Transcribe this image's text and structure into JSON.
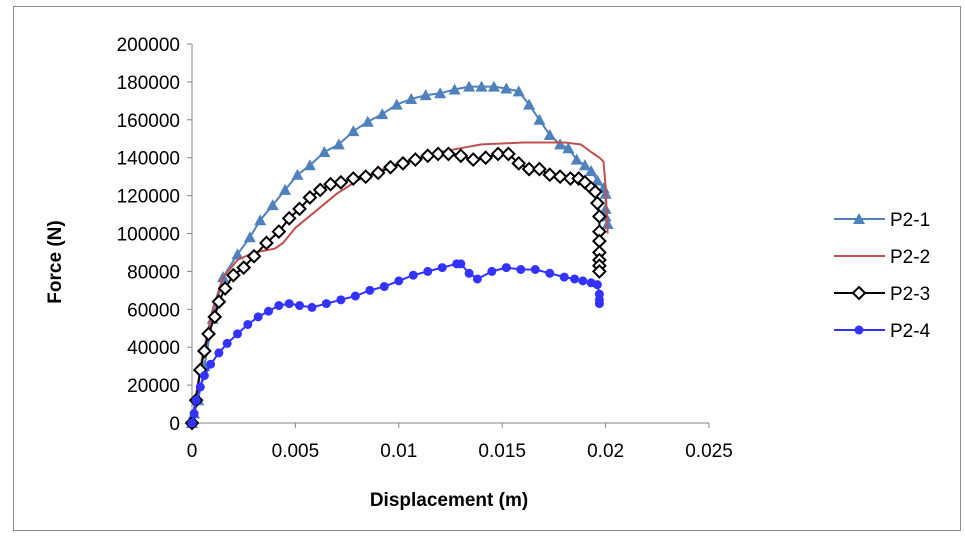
{
  "chart_data": {
    "type": "scatter",
    "title": "",
    "xlabel": "Displacement (m)",
    "ylabel": "Force (N)",
    "xlim": [
      0,
      0.025
    ],
    "ylim": [
      0,
      200000
    ],
    "x_ticks": [
      "0",
      "0.005",
      "0.01",
      "0.015",
      "0.02",
      "0.025"
    ],
    "y_ticks": [
      "0",
      "20000",
      "40000",
      "60000",
      "80000",
      "100000",
      "120000",
      "140000",
      "160000",
      "180000",
      "200000"
    ],
    "grid": false,
    "legend_position": "right",
    "series": [
      {
        "name": "P2-1",
        "color": "#4f81bd",
        "marker": "triangle",
        "x": [
          0,
          0.0001,
          0.0003,
          0.0006,
          0.001,
          0.0015,
          0.0022,
          0.0028,
          0.0033,
          0.0039,
          0.0045,
          0.0051,
          0.0057,
          0.0064,
          0.0071,
          0.0078,
          0.0085,
          0.0092,
          0.0099,
          0.0106,
          0.0113,
          0.012,
          0.0127,
          0.0134,
          0.014,
          0.0146,
          0.0152,
          0.0158,
          0.0163,
          0.0168,
          0.0173,
          0.0178,
          0.0182,
          0.0186,
          0.019,
          0.0193,
          0.0196,
          0.0199,
          0.02,
          0.02,
          0.02,
          0.0201
        ],
        "y": [
          0,
          5000,
          12000,
          30000,
          55000,
          77000,
          89000,
          98000,
          107000,
          115000,
          123000,
          131000,
          136000,
          143000,
          147000,
          154000,
          159000,
          163000,
          168000,
          171000,
          173000,
          174000,
          176000,
          177500,
          177500,
          177500,
          176500,
          175000,
          168000,
          160000,
          152000,
          147000,
          145000,
          139000,
          136000,
          133000,
          128000,
          124000,
          121000,
          113000,
          109000,
          105000
        ]
      },
      {
        "name": "P2-2",
        "color": "#c0504d",
        "marker": "none",
        "x": [
          0,
          0.0002,
          0.0005,
          0.001,
          0.0015,
          0.0022,
          0.003,
          0.0035,
          0.004,
          0.0044,
          0.005,
          0.006,
          0.007,
          0.008,
          0.009,
          0.01,
          0.011,
          0.012,
          0.013,
          0.014,
          0.015,
          0.016,
          0.017,
          0.018,
          0.0188,
          0.0193,
          0.0197,
          0.0199,
          0.02,
          0.0201
        ],
        "y": [
          0,
          15000,
          35000,
          60000,
          77000,
          86000,
          90000,
          91000,
          92000,
          95000,
          103000,
          112000,
          121000,
          128000,
          133000,
          137000,
          140000,
          143000,
          145000,
          147000,
          147500,
          148000,
          148000,
          148000,
          147000,
          143000,
          140000,
          138000,
          125000,
          100000
        ]
      },
      {
        "name": "P2-3",
        "color": "#000000",
        "marker": "diamond",
        "x": [
          0,
          0.0002,
          0.0004,
          0.0006,
          0.0008,
          0.0011,
          0.0013,
          0.0016,
          0.002,
          0.0025,
          0.003,
          0.0036,
          0.0042,
          0.0047,
          0.0052,
          0.0057,
          0.0062,
          0.0067,
          0.0072,
          0.0078,
          0.0084,
          0.009,
          0.0096,
          0.0102,
          0.0108,
          0.0114,
          0.0119,
          0.0124,
          0.013,
          0.0136,
          0.0142,
          0.0148,
          0.0153,
          0.0158,
          0.0163,
          0.0168,
          0.0173,
          0.0178,
          0.0183,
          0.0187,
          0.019,
          0.0193,
          0.0195,
          0.0196,
          0.0197,
          0.0197,
          0.0197,
          0.0197,
          0.0197,
          0.0197,
          0.0197
        ],
        "y": [
          0,
          12000,
          28000,
          38000,
          47000,
          56000,
          64000,
          71000,
          78000,
          82000,
          88000,
          95000,
          101000,
          108000,
          113000,
          119000,
          123000,
          126000,
          127000,
          129000,
          130000,
          132000,
          135000,
          137000,
          139000,
          141000,
          142000,
          142000,
          141000,
          139000,
          140000,
          142000,
          142000,
          137000,
          134000,
          134000,
          131000,
          130000,
          129000,
          129000,
          127000,
          124000,
          122000,
          116000,
          109000,
          101000,
          96000,
          90000,
          86000,
          83000,
          80000
        ]
      },
      {
        "name": "P2-4",
        "color": "#3333ff",
        "marker": "circle",
        "x": [
          0,
          0.0001,
          0.0002,
          0.0004,
          0.0006,
          0.0009,
          0.0013,
          0.0017,
          0.0022,
          0.0027,
          0.0032,
          0.0037,
          0.0042,
          0.0047,
          0.0052,
          0.0058,
          0.0065,
          0.0072,
          0.0079,
          0.0086,
          0.0093,
          0.01,
          0.0107,
          0.0114,
          0.0121,
          0.0128,
          0.013,
          0.0134,
          0.0138,
          0.0145,
          0.0152,
          0.0159,
          0.0166,
          0.0173,
          0.018,
          0.0185,
          0.0189,
          0.0193,
          0.0196,
          0.0197,
          0.0197,
          0.0197
        ],
        "y": [
          0,
          5000,
          12000,
          19000,
          25000,
          31000,
          37000,
          42000,
          47000,
          52000,
          56000,
          59000,
          62000,
          63000,
          62000,
          61000,
          63000,
          65000,
          67000,
          70000,
          72000,
          75000,
          78000,
          80000,
          82000,
          84000,
          84000,
          79000,
          76000,
          80000,
          82000,
          81000,
          81000,
          79000,
          77000,
          76000,
          75000,
          74000,
          73000,
          68000,
          65000,
          63000
        ]
      }
    ]
  }
}
